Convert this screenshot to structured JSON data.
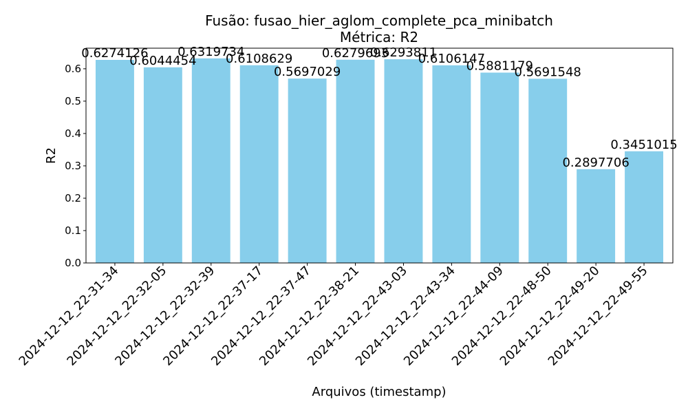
{
  "chart_data": {
    "type": "bar",
    "title": "Fusão: fusao_hier_aglom_complete_pca_minibatch",
    "subtitle": "Métrica: R2",
    "xlabel": "Arquivos (timestamp)",
    "ylabel": "R2",
    "categories": [
      "2024-12-12_22-31-34",
      "2024-12-12_22-32-05",
      "2024-12-12_22-32-39",
      "2024-12-12_22-37-17",
      "2024-12-12_22-37-47",
      "2024-12-12_22-38-21",
      "2024-12-12_22-43-03",
      "2024-12-12_22-43-34",
      "2024-12-12_22-44-09",
      "2024-12-12_22-48-50",
      "2024-12-12_22-49-20",
      "2024-12-12_22-49-55"
    ],
    "values": [
      0.6274126,
      0.6044454,
      0.6319734,
      0.6108629,
      0.5697029,
      0.6279693,
      0.6293811,
      0.6106147,
      0.5881179,
      0.5691548,
      0.2897706,
      0.3451015
    ],
    "value_labels": [
      "0.6274126",
      "0.6044454",
      "0.6319734",
      "0.6108629",
      "0.5697029",
      "0.6279693",
      "0.6293811",
      "0.6106147",
      "0.5881179",
      "0.5691548",
      "0.2897706",
      "0.3451015"
    ],
    "yticks": [
      0.0,
      0.1,
      0.2,
      0.3,
      0.4,
      0.5,
      0.6
    ],
    "ytick_labels": [
      "0.0",
      "0.1",
      "0.2",
      "0.3",
      "0.4",
      "0.5",
      "0.6"
    ],
    "ylim": [
      0,
      0.6636
    ],
    "bar_color": "#87CEEB",
    "grid": false,
    "legend": "none"
  }
}
